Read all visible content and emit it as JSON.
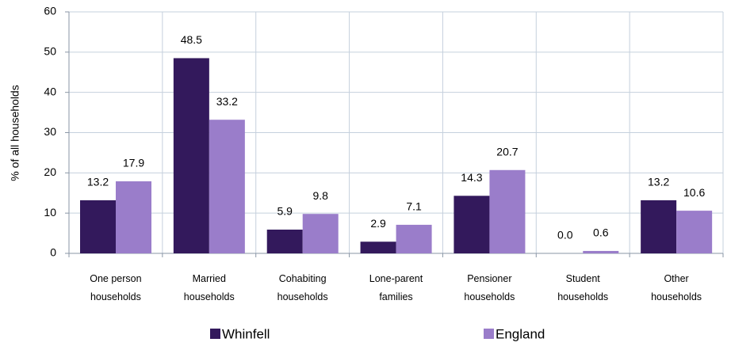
{
  "chart_data": {
    "type": "bar",
    "ylabel": "% of all households",
    "categories": [
      "One person\nhouseholds",
      "Married\nhouseholds",
      "Cohabiting\nhouseholds",
      "Lone-parent\nfamilies",
      "Pensioner\nhouseholds",
      "Student\nhouseholds",
      "Other\nhouseholds"
    ],
    "series": [
      {
        "name": "Whinfell",
        "color": "#33195c",
        "values": [
          13.2,
          48.5,
          5.9,
          2.9,
          14.3,
          0.0,
          13.2
        ],
        "value_labels": [
          "13.2",
          "48.5",
          "5.9",
          "2.9",
          "14.3",
          "0.0",
          "13.2"
        ]
      },
      {
        "name": "England",
        "color": "#9a7dca",
        "values": [
          17.9,
          33.2,
          9.8,
          7.1,
          20.7,
          0.6,
          10.6
        ],
        "value_labels": [
          "17.9",
          "33.2",
          "9.8",
          "7.1",
          "20.7",
          "0.6",
          "10.6"
        ]
      }
    ],
    "ylim": [
      0,
      60
    ],
    "yticks": [
      0,
      10,
      20,
      30,
      40,
      50,
      60
    ],
    "grid": true,
    "legend": "bottom"
  }
}
